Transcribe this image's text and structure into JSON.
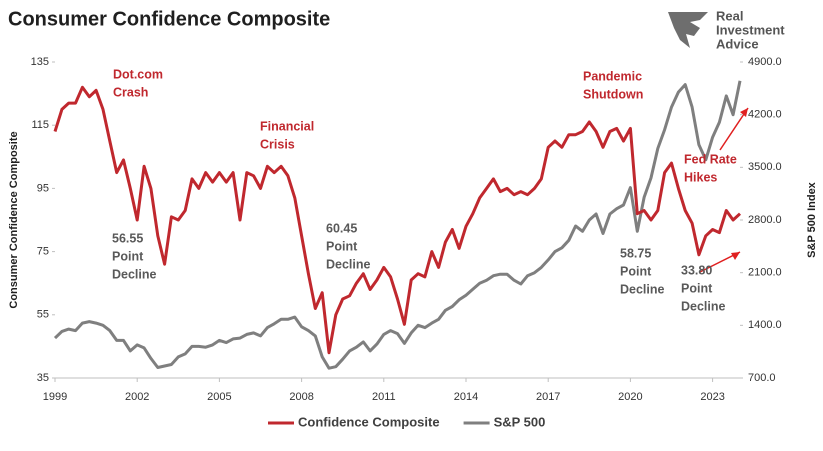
{
  "chart_data": {
    "type": "line",
    "title": "Consumer Confidence Composite",
    "brand": [
      "Real",
      "Investment",
      "Advice"
    ],
    "ylabel": "Consumer Confidence Composite",
    "y2label": "S&P 500 Index",
    "xlim": [
      1999,
      2024
    ],
    "xticks": [
      1999,
      2002,
      2005,
      2008,
      2011,
      2014,
      2017,
      2020,
      2023
    ],
    "ylim": [
      35,
      135
    ],
    "yticks": [
      35,
      55,
      75,
      95,
      115,
      135
    ],
    "y2lim": [
      700,
      4900
    ],
    "y2ticks": [
      {
        "value": 700,
        "label": "700.0"
      },
      {
        "value": 1400,
        "label": "1400.0"
      },
      {
        "value": 2100,
        "label": "2100.0"
      },
      {
        "value": 2800,
        "label": "2800.0"
      },
      {
        "value": 3500,
        "label": "3500.0"
      },
      {
        "value": 4200,
        "label": "4200.0"
      },
      {
        "value": 4900,
        "label": "4900.0"
      }
    ],
    "grid": false,
    "legend": "bottom",
    "x": [
      1999,
      1999.25,
      1999.5,
      1999.75,
      2000,
      2000.25,
      2000.5,
      2000.75,
      2001,
      2001.25,
      2001.5,
      2001.75,
      2002,
      2002.25,
      2002.5,
      2002.75,
      2003,
      2003.25,
      2003.5,
      2003.75,
      2004,
      2004.25,
      2004.5,
      2004.75,
      2005,
      2005.25,
      2005.5,
      2005.75,
      2006,
      2006.25,
      2006.5,
      2006.75,
      2007,
      2007.25,
      2007.5,
      2007.75,
      2008,
      2008.25,
      2008.5,
      2008.75,
      2009,
      2009.25,
      2009.5,
      2009.75,
      2010,
      2010.25,
      2010.5,
      2010.75,
      2011,
      2011.25,
      2011.5,
      2011.75,
      2012,
      2012.25,
      2012.5,
      2012.75,
      2013,
      2013.25,
      2013.5,
      2013.75,
      2014,
      2014.25,
      2014.5,
      2014.75,
      2015,
      2015.25,
      2015.5,
      2015.75,
      2016,
      2016.25,
      2016.5,
      2016.75,
      2017,
      2017.25,
      2017.5,
      2017.75,
      2018,
      2018.25,
      2018.5,
      2018.75,
      2019,
      2019.25,
      2019.5,
      2019.75,
      2020,
      2020.25,
      2020.5,
      2020.75,
      2021,
      2021.25,
      2021.5,
      2021.75,
      2022,
      2022.25,
      2022.5,
      2022.75,
      2023,
      2023.25,
      2023.5,
      2023.75,
      2024
    ],
    "series": [
      {
        "name": "Confidence Composite",
        "color": "#c0282e",
        "values": [
          113,
          120,
          122,
          122,
          127,
          124,
          126,
          120,
          110,
          100,
          104,
          95,
          85,
          102,
          95,
          80,
          71,
          86,
          85,
          88,
          98,
          95,
          100,
          97,
          100,
          97,
          100,
          85,
          100,
          99,
          95,
          102,
          100,
          102,
          99,
          92,
          80,
          68,
          57,
          62,
          43,
          55,
          60,
          61,
          65,
          68,
          63,
          66,
          70,
          67,
          60,
          52,
          66,
          68,
          67,
          75,
          70,
          78,
          82,
          76,
          83,
          87,
          92,
          95,
          98,
          94,
          95,
          93,
          94,
          93,
          95,
          98,
          108,
          110,
          108,
          112,
          112,
          113,
          116,
          113,
          108,
          113,
          114,
          110,
          114,
          87,
          88,
          85,
          88,
          100,
          103,
          95,
          88,
          84,
          74,
          80,
          82,
          81,
          88,
          85,
          87
        ]
      },
      {
        "name": "S&P 500",
        "color": "#7f7f7f",
        "axis": "y2",
        "values": [
          1230,
          1320,
          1350,
          1330,
          1430,
          1450,
          1430,
          1400,
          1330,
          1200,
          1200,
          1060,
          1140,
          1100,
          960,
          840,
          860,
          880,
          980,
          1020,
          1120,
          1120,
          1110,
          1140,
          1200,
          1170,
          1220,
          1230,
          1280,
          1300,
          1260,
          1370,
          1420,
          1480,
          1480,
          1510,
          1380,
          1330,
          1260,
          980,
          830,
          850,
          950,
          1060,
          1110,
          1180,
          1060,
          1150,
          1280,
          1330,
          1290,
          1160,
          1300,
          1400,
          1370,
          1430,
          1480,
          1600,
          1650,
          1740,
          1800,
          1880,
          1960,
          2000,
          2060,
          2080,
          2080,
          2000,
          1950,
          2060,
          2100,
          2170,
          2270,
          2380,
          2430,
          2530,
          2720,
          2650,
          2800,
          2880,
          2620,
          2880,
          2950,
          3000,
          3230,
          2650,
          3100,
          3360,
          3750,
          4000,
          4300,
          4500,
          4600,
          4300,
          3800,
          3600,
          3900,
          4100,
          4450,
          4200,
          4650
        ]
      }
    ],
    "annotations": [
      {
        "lines": [
          "Dot.com",
          "Crash"
        ],
        "color": "#c0282e"
      },
      {
        "lines": [
          "Financial",
          "Crisis"
        ],
        "color": "#c0282e"
      },
      {
        "lines": [
          "Pandemic",
          "Shutdown"
        ],
        "color": "#c0282e"
      },
      {
        "lines": [
          "Fed Rate",
          "Hikes"
        ],
        "color": "#c0282e"
      },
      {
        "lines": [
          "56.55",
          "Point",
          "Decline"
        ],
        "color": "#595959"
      },
      {
        "lines": [
          "60.45",
          "Point",
          "Decline"
        ],
        "color": "#595959"
      },
      {
        "lines": [
          "58.75",
          "Point",
          "Decline"
        ],
        "color": "#595959"
      },
      {
        "lines": [
          "33.80",
          "Point",
          "Decline"
        ],
        "color": "#595959"
      }
    ]
  }
}
